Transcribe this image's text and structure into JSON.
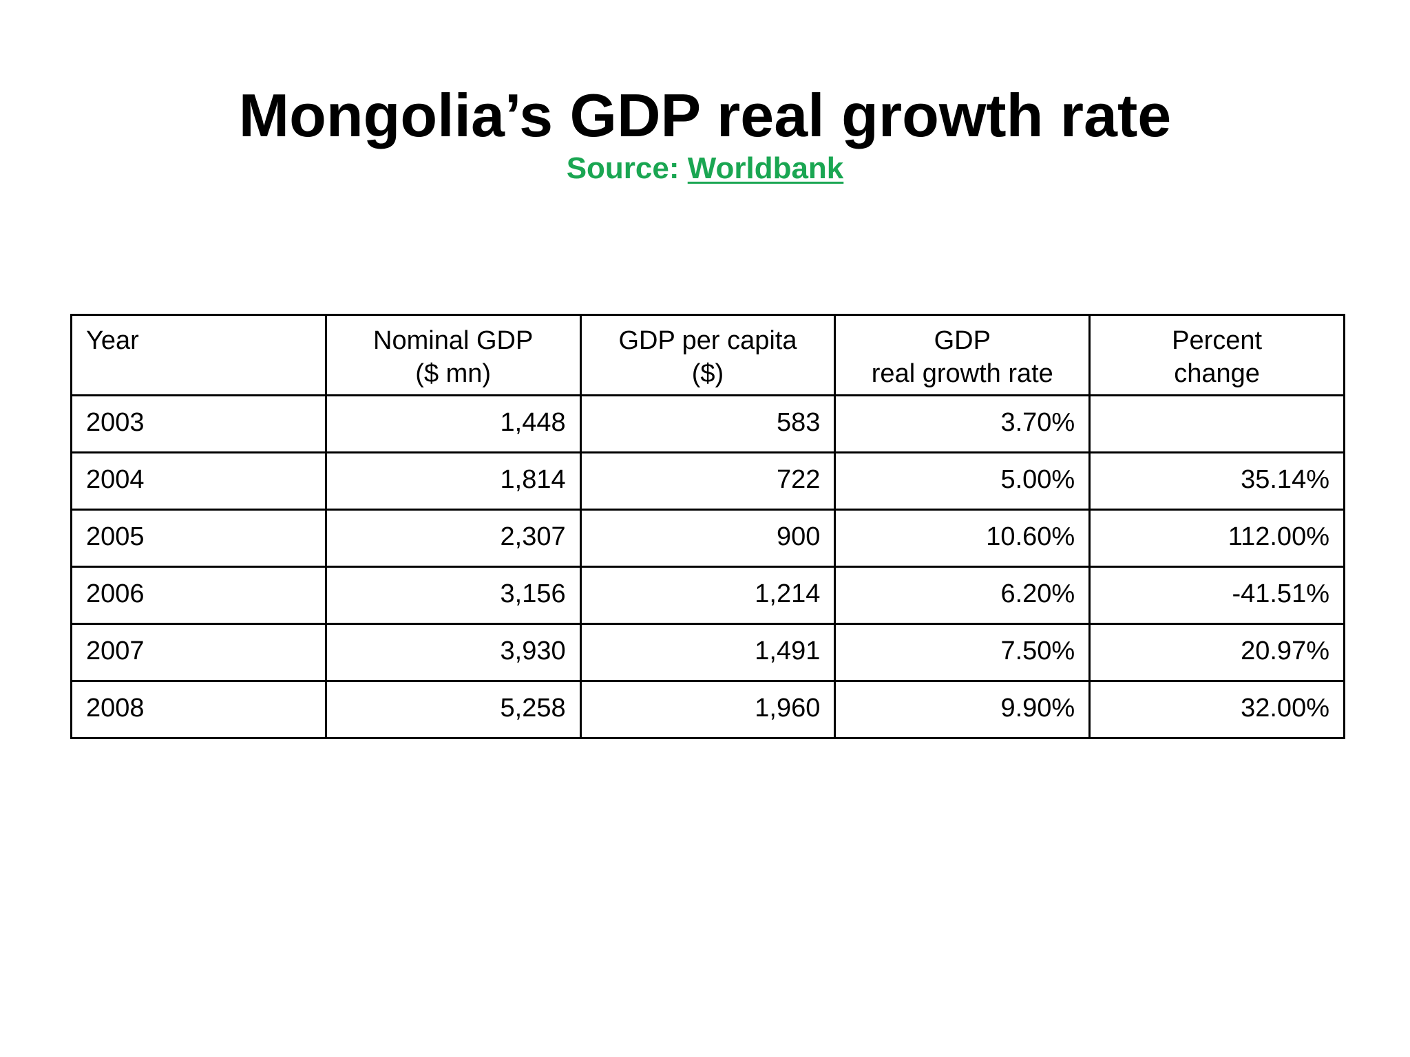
{
  "title": "Mongolia’s GDP real growth rate",
  "source": {
    "prefix": "Source: ",
    "link_label": "Worldbank"
  },
  "colors": {
    "source_green": "#1aa652",
    "text": "#000000",
    "border": "#000000"
  },
  "table": {
    "headers": [
      {
        "line1": "Year",
        "line2": ""
      },
      {
        "line1": "Nominal GDP",
        "line2": "($ mn)"
      },
      {
        "line1": "GDP per capita",
        "line2": "($)"
      },
      {
        "line1": "GDP",
        "line2": "real growth rate"
      },
      {
        "line1": "Percent",
        "line2": "change"
      }
    ],
    "rows": [
      {
        "year": "2003",
        "nominal_gdp": "1,448",
        "gdp_per_capita": "583",
        "real_growth_rate": "3.70%",
        "percent_change": ""
      },
      {
        "year": "2004",
        "nominal_gdp": "1,814",
        "gdp_per_capita": "722",
        "real_growth_rate": "5.00%",
        "percent_change": "35.14%"
      },
      {
        "year": "2005",
        "nominal_gdp": "2,307",
        "gdp_per_capita": "900",
        "real_growth_rate": "10.60%",
        "percent_change": "112.00%"
      },
      {
        "year": "2006",
        "nominal_gdp": "3,156",
        "gdp_per_capita": "1,214",
        "real_growth_rate": "6.20%",
        "percent_change": "-41.51%"
      },
      {
        "year": "2007",
        "nominal_gdp": "3,930",
        "gdp_per_capita": "1,491",
        "real_growth_rate": "7.50%",
        "percent_change": "20.97%"
      },
      {
        "year": "2008",
        "nominal_gdp": "5,258",
        "gdp_per_capita": "1,960",
        "real_growth_rate": "9.90%",
        "percent_change": "32.00%"
      }
    ]
  }
}
